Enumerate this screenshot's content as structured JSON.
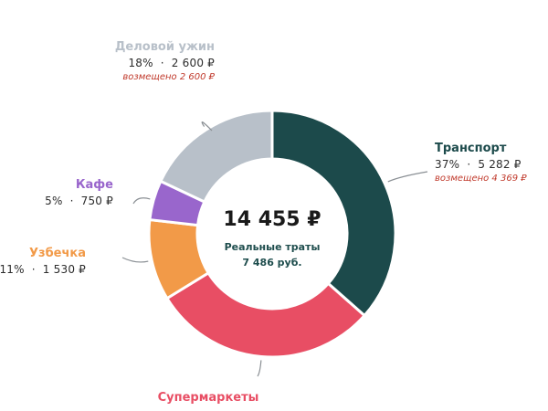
{
  "chart_data": {
    "type": "pie",
    "donut": true,
    "total_label": "14 455 ₽",
    "center_caption": "Реальные траты",
    "center_value": "7 486 руб.",
    "slices": [
      {
        "name": "Транспорт",
        "percent_label": "37%",
        "amount_label": "5 282 ₽",
        "value": 5282,
        "reimbursed": "возмещено 4 369 ₽",
        "color": "#1c4a4b"
      },
      {
        "name": "Супермаркеты",
        "percent_label": "",
        "amount_label": "",
        "value": 4293,
        "reimbursed": "",
        "color": "#e84e64"
      },
      {
        "name": "Узбечка",
        "percent_label": "11%",
        "amount_label": "1 530 ₽",
        "value": 1530,
        "reimbursed": "",
        "color": "#f29a48"
      },
      {
        "name": "Кафе",
        "percent_label": "5%",
        "amount_label": "750 ₽",
        "value": 750,
        "reimbursed": "",
        "color": "#9966cc"
      },
      {
        "name": "Деловой ужин",
        "percent_label": "18%",
        "amount_label": "2 600 ₽",
        "value": 2600,
        "reimbursed": "возмещено 2 600 ₽",
        "color": "#b8c0c9"
      }
    ],
    "separator": "·",
    "name_colors": {
      "Транспорт": "#1c4a4b",
      "Супермаркеты": "#e84e64",
      "Узбечка": "#f29a48",
      "Кафе": "#9966cc",
      "Деловой ужин": "#b8c0c9"
    }
  }
}
